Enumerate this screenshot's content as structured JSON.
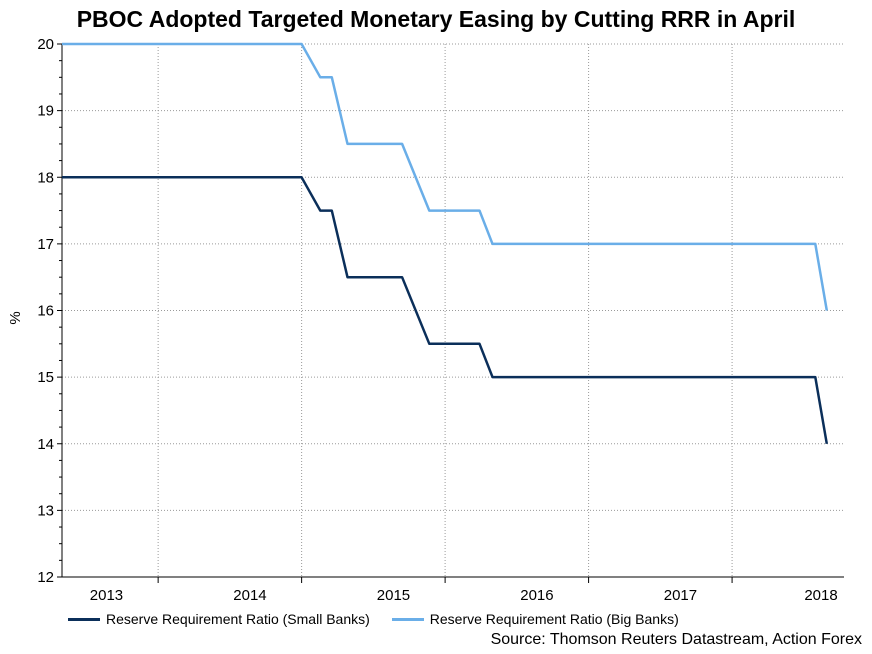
{
  "chart_data": {
    "type": "line",
    "title": "PBOC Adopted Targeted Monetary Easing by Cutting RRR in April",
    "xlabel": "",
    "ylabel": "%",
    "ylim": [
      12,
      20
    ],
    "yticks": [
      12,
      13,
      14,
      15,
      16,
      17,
      18,
      19,
      20
    ],
    "xlim": [
      2012.93,
      2018.38
    ],
    "x_tick_labels": [
      {
        "label": "2013",
        "x": 2013.24
      },
      {
        "label": "2014",
        "x": 2014.24
      },
      {
        "label": "2015",
        "x": 2015.24
      },
      {
        "label": "2016",
        "x": 2016.24
      },
      {
        "label": "2017",
        "x": 2017.24
      },
      {
        "label": "2018",
        "x": 2018.22
      }
    ],
    "x_gridlines": [
      2013.6,
      2014.6,
      2015.6,
      2016.6,
      2017.6
    ],
    "grid": true,
    "legend_position": "bottom-left",
    "series": [
      {
        "name": "Reserve Requirement Ratio (Small Banks)",
        "color": "#0b2f5a",
        "x": [
          2012.93,
          2014.6,
          2014.73,
          2014.81,
          2014.92,
          2015.3,
          2015.49,
          2015.84,
          2015.93,
          2018.18,
          2018.26
        ],
        "y": [
          18,
          18,
          17.5,
          17.5,
          16.5,
          16.5,
          15.5,
          15.5,
          15,
          15,
          14
        ]
      },
      {
        "name": "Reserve Requirement Ratio (Big Banks)",
        "color": "#6aaee8",
        "x": [
          2012.93,
          2014.6,
          2014.73,
          2014.81,
          2014.92,
          2015.3,
          2015.49,
          2015.84,
          2015.93,
          2018.18,
          2018.26
        ],
        "y": [
          20,
          20,
          19.5,
          19.5,
          18.5,
          18.5,
          17.5,
          17.5,
          17,
          17,
          16
        ]
      }
    ]
  },
  "legend": {
    "items": [
      {
        "label": "Reserve Requirement Ratio (Small Banks)",
        "color": "#0b2f5a"
      },
      {
        "label": "Reserve Requirement Ratio (Big Banks)",
        "color": "#6aaee8"
      }
    ]
  },
  "source": "Source: Thomson Reuters Datastream, Action Forex"
}
